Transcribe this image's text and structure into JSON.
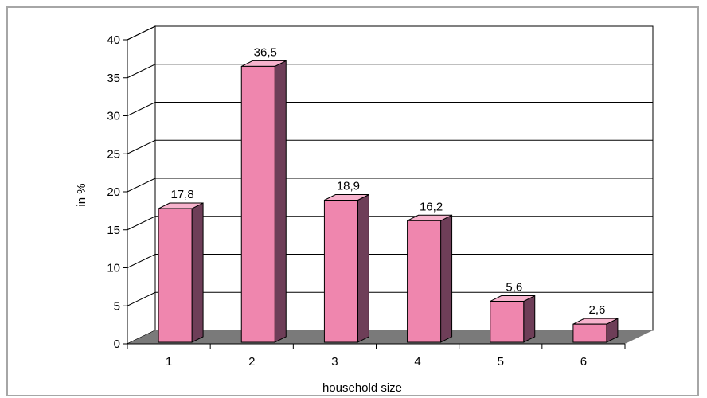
{
  "chart_data": {
    "type": "bar",
    "style": "3d-column",
    "categories": [
      "1",
      "2",
      "3",
      "4",
      "5",
      "6"
    ],
    "values": [
      17.8,
      36.5,
      18.9,
      16.2,
      5.6,
      2.6
    ],
    "value_labels": [
      "17,8",
      "36,5",
      "18,9",
      "16,2",
      "5,6",
      "2,6"
    ],
    "xlabel": "household size",
    "ylabel": "in %",
    "ylim": [
      0,
      40
    ],
    "yticks": [
      0,
      5,
      10,
      15,
      20,
      25,
      30,
      35,
      40
    ],
    "grid": true,
    "legend": "none",
    "colors": {
      "bar_front": "#ef86ae",
      "bar_top": "#f7b3cd",
      "bar_side": "#6e3e58",
      "floor": "#7a7a7a",
      "grid": "#000000",
      "frame": "#a6a6a6"
    }
  }
}
